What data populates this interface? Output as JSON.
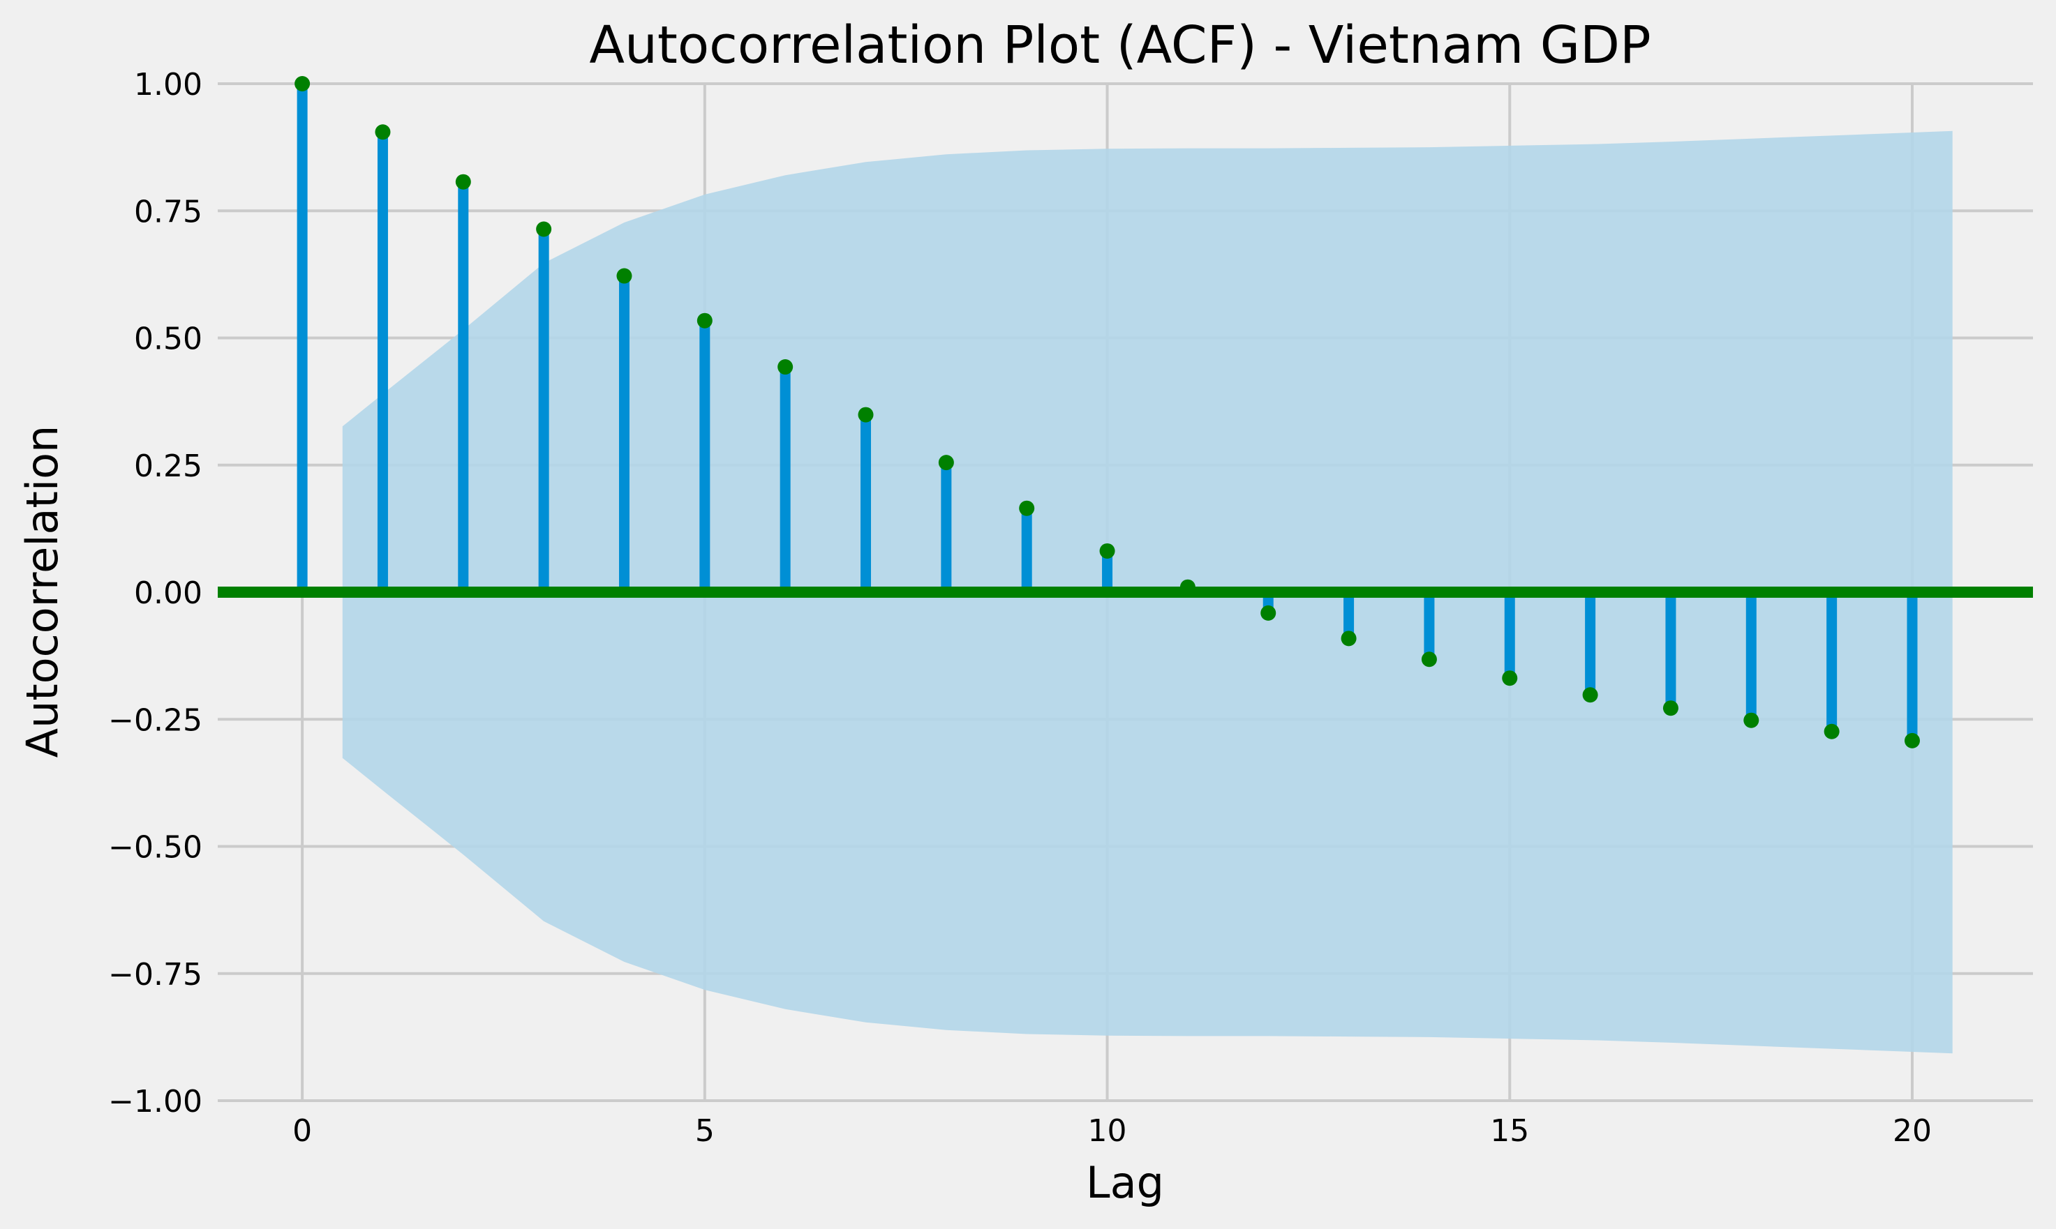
{
  "chart_data": {
    "type": "stem",
    "title": "Autocorrelation Plot (ACF) - Vietnam GDP",
    "xlabel": "Lag",
    "ylabel": "Autocorrelation",
    "xlim": [
      -1.05,
      21.5
    ],
    "ylim": [
      -1.0,
      1.0
    ],
    "x_ticks": [
      0,
      5,
      10,
      15,
      20
    ],
    "x_tick_labels": [
      "0",
      "5",
      "10",
      "15",
      "20"
    ],
    "y_ticks": [
      1.0,
      0.75,
      0.5,
      0.25,
      0.0,
      -0.25,
      -0.5,
      -0.75,
      -1.0
    ],
    "y_tick_labels": [
      "1.00",
      "0.75",
      "0.50",
      "0.25",
      "0.00",
      "−0.25",
      "−0.50",
      "−0.75",
      "−1.00"
    ],
    "grid": true,
    "lags": [
      0,
      1,
      2,
      3,
      4,
      5,
      6,
      7,
      8,
      9,
      10,
      11,
      12,
      13,
      14,
      15,
      16,
      17,
      18,
      19,
      20
    ],
    "acf": [
      1.0,
      0.905,
      0.807,
      0.714,
      0.622,
      0.534,
      0.443,
      0.349,
      0.255,
      0.165,
      0.081,
      0.01,
      -0.041,
      -0.091,
      -0.132,
      -0.169,
      -0.202,
      -0.228,
      -0.252,
      -0.274,
      -0.292
    ],
    "confidence_band": {
      "lags": [
        0.5,
        1,
        2,
        3,
        4,
        5,
        6,
        7,
        8,
        9,
        10,
        11,
        12,
        13,
        14,
        15,
        16,
        17,
        18,
        19,
        20,
        20.5
      ],
      "upper": [
        0.326,
        0.39,
        0.516,
        0.647,
        0.727,
        0.782,
        0.82,
        0.846,
        0.861,
        0.869,
        0.872,
        0.873,
        0.873,
        0.874,
        0.875,
        0.878,
        0.881,
        0.886,
        0.892,
        0.898,
        0.904,
        0.907
      ]
    },
    "colors": {
      "background": "#f0f0f0",
      "stem": "#008fd5",
      "marker": "#008000",
      "zero_line": "#008000",
      "band": "#b3d6e9",
      "grid": "#cbcbcb"
    }
  }
}
